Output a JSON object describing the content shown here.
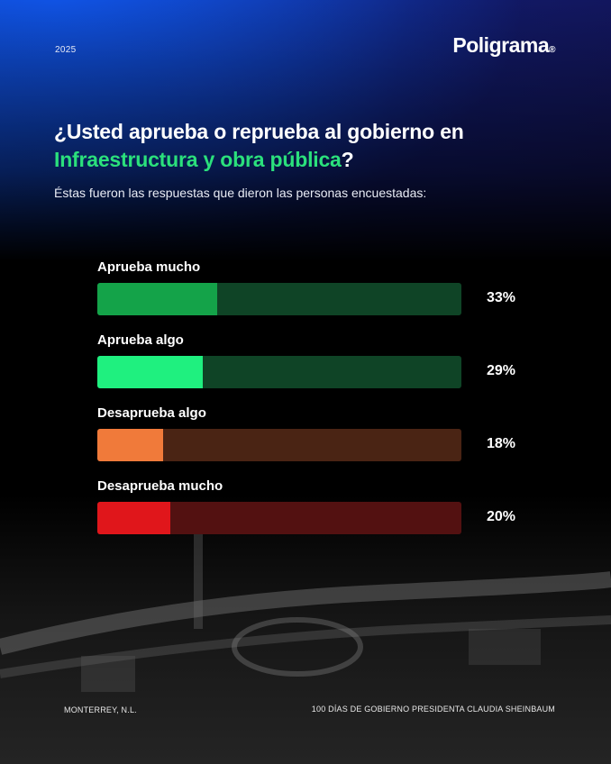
{
  "header": {
    "year": "2025",
    "logo": "Poligrama",
    "logo_mark": "®"
  },
  "question": {
    "line1": "¿Usted aprueba o reprueba al gobierno en",
    "highlight": "Infraestructura y obra pública",
    "end": "?"
  },
  "subtitle": "Éstas fueron las respuestas que dieron las personas encuestadas:",
  "chart_data": {
    "type": "bar",
    "orientation": "horizontal",
    "categories": [
      "Aprueba mucho",
      "Aprueba algo",
      "Desaprueba algo",
      "Desaprueba mucho"
    ],
    "values": [
      33,
      29,
      18,
      20
    ],
    "value_labels": [
      "33%",
      "29%",
      "18%",
      "20%"
    ],
    "xlim": [
      0,
      100
    ],
    "unit": "%",
    "bar_colors": [
      "#14a349",
      "#1ff07f",
      "#f07a3a",
      "#e0161b"
    ],
    "track_colors": [
      "#0f4426",
      "#0f4426",
      "#4a2414",
      "#531111"
    ]
  },
  "footer": {
    "location": "MONTERREY, N.L.",
    "caption": "100 DÍAS DE GOBIERNO PRESIDENTA CLAUDIA SHEINBAUM"
  }
}
